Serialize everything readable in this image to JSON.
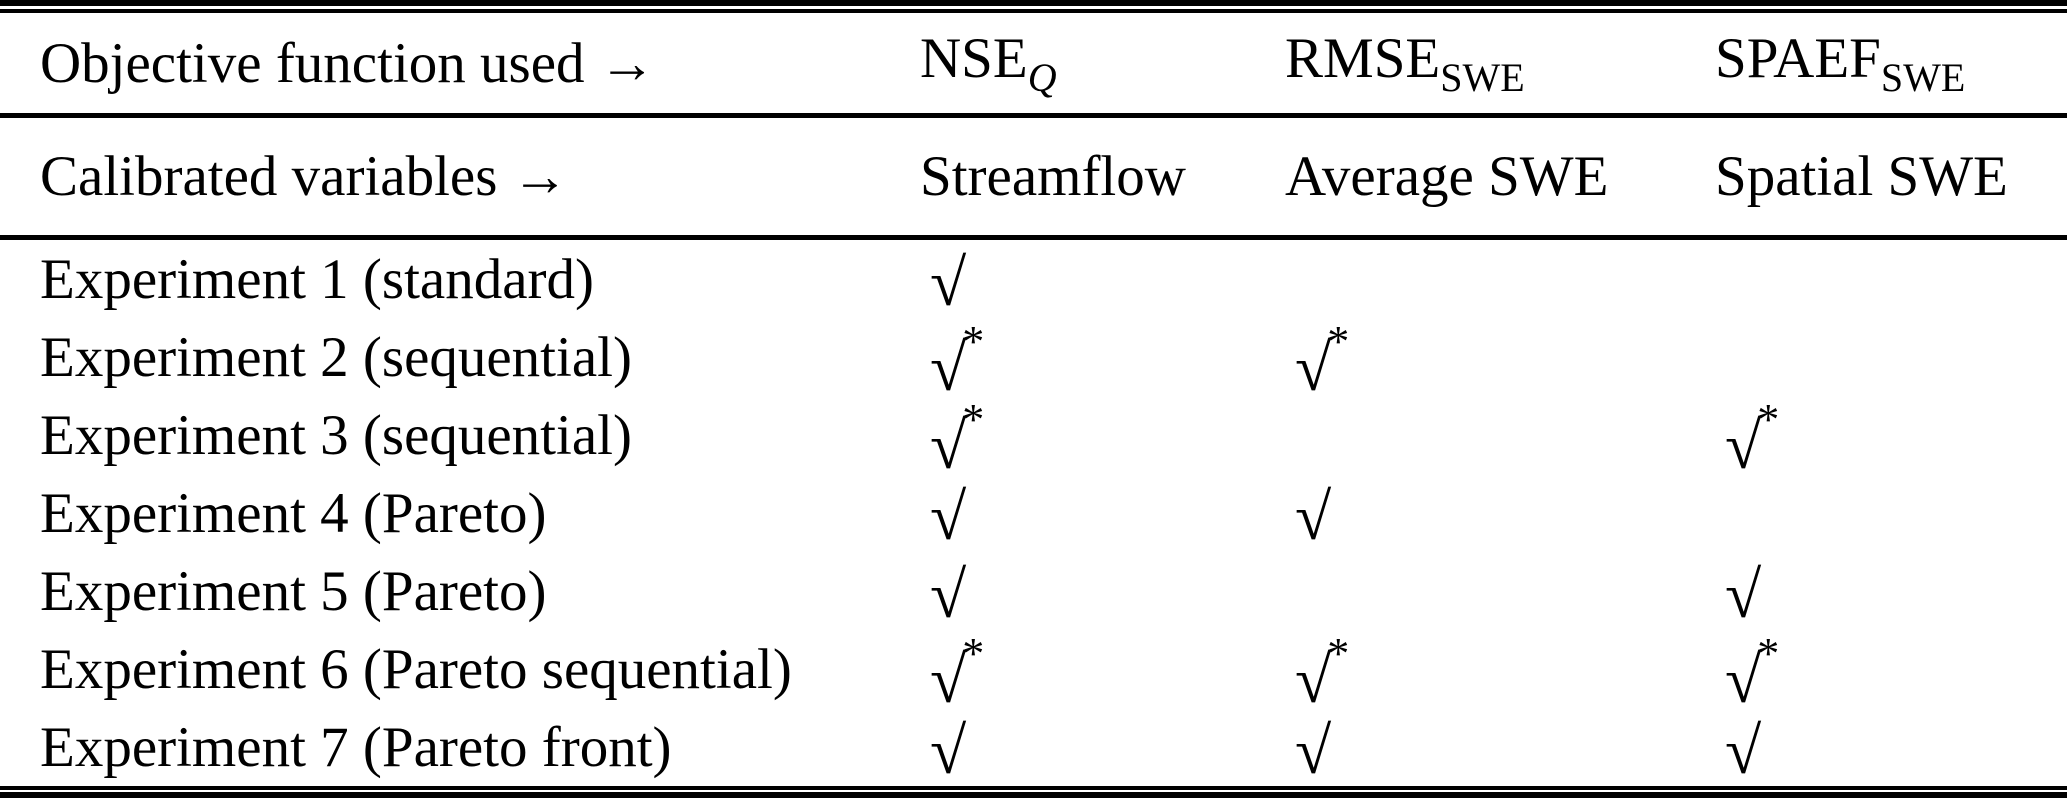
{
  "table": {
    "header_row_1": {
      "label": "Objective function used →",
      "metrics": [
        {
          "base": "NSE",
          "sub": "Q"
        },
        {
          "base": "RMSE",
          "sub": "SWE"
        },
        {
          "base": "SPAEF",
          "sub": "SWE"
        }
      ]
    },
    "header_row_2": {
      "label": "Calibrated variables →",
      "variables": [
        "Streamflow",
        "Average SWE",
        "Spatial SWE"
      ]
    },
    "rows": [
      {
        "label": "Experiment 1 (standard)",
        "marks": [
          {
            "glyph": "√",
            "star": ""
          },
          {
            "glyph": "",
            "star": ""
          },
          {
            "glyph": "",
            "star": ""
          }
        ]
      },
      {
        "label": "Experiment 2 (sequential)",
        "marks": [
          {
            "glyph": "√",
            "star": "*"
          },
          {
            "glyph": "√",
            "star": "*"
          },
          {
            "glyph": "",
            "star": ""
          }
        ]
      },
      {
        "label": "Experiment 3 (sequential)",
        "marks": [
          {
            "glyph": "√",
            "star": "*"
          },
          {
            "glyph": "",
            "star": ""
          },
          {
            "glyph": "√",
            "star": "*"
          }
        ]
      },
      {
        "label": "Experiment 4 (Pareto)",
        "marks": [
          {
            "glyph": "√",
            "star": ""
          },
          {
            "glyph": "√",
            "star": ""
          },
          {
            "glyph": "",
            "star": ""
          }
        ]
      },
      {
        "label": "Experiment 5 (Pareto)",
        "marks": [
          {
            "glyph": "√",
            "star": ""
          },
          {
            "glyph": "",
            "star": ""
          },
          {
            "glyph": "√",
            "star": ""
          }
        ]
      },
      {
        "label": "Experiment 6 (Pareto sequential)",
        "marks": [
          {
            "glyph": "√",
            "star": "*"
          },
          {
            "glyph": "√",
            "star": "*"
          },
          {
            "glyph": "√",
            "star": "*"
          }
        ]
      },
      {
        "label": "Experiment 7 (Pareto front)",
        "marks": [
          {
            "glyph": "√",
            "star": ""
          },
          {
            "glyph": "√",
            "star": ""
          },
          {
            "glyph": "√",
            "star": ""
          }
        ]
      }
    ]
  },
  "colors": {
    "text": "#000000",
    "background": "#ffffff",
    "rule": "#000000"
  }
}
